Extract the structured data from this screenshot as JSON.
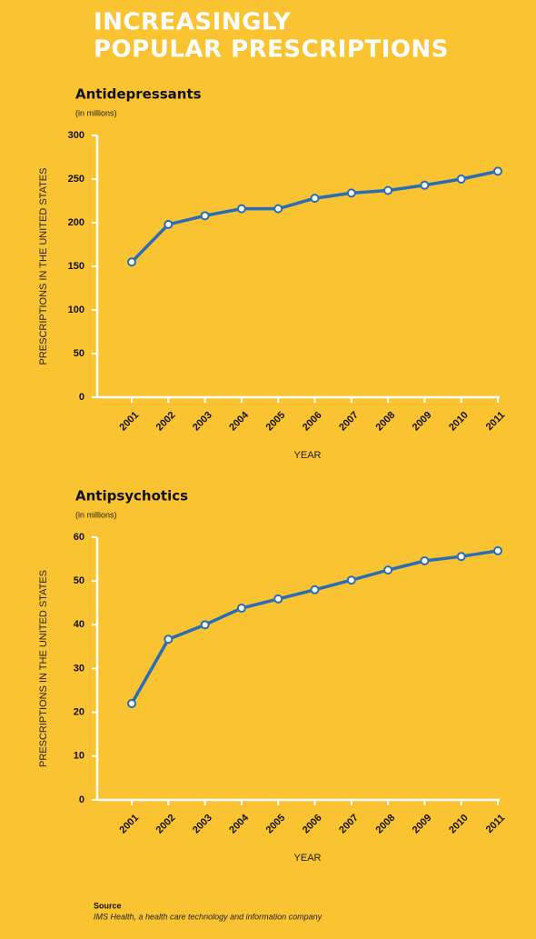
{
  "title": [
    "INCREASINGLY",
    "POPULAR PRESCRIPTIONS"
  ],
  "source": {
    "label": "Source",
    "text": "IMS Health, a health care technology and information company"
  },
  "chart_data": [
    {
      "type": "line",
      "title": "Antidepressants",
      "subtitle": "(in millions)",
      "y_label": "PRESCRIPTIONS IN THE UNITED STATES",
      "x_label": "YEAR",
      "categories": [
        "2001",
        "2002",
        "2003",
        "2004",
        "2005",
        "2006",
        "2007",
        "2008",
        "2009",
        "2010",
        "2011"
      ],
      "values": [
        155,
        198,
        208,
        216,
        216,
        228,
        234,
        237,
        243,
        250,
        259
      ],
      "color": "#2a6db5",
      "ylim": [
        0,
        300
      ],
      "yticks": [
        0,
        50,
        100,
        150,
        200,
        250,
        300
      ]
    },
    {
      "type": "line",
      "title": "Antipsychotics",
      "subtitle": "(in millions)",
      "y_label": "PRESCRIPTIONS IN THE UNITED STATES",
      "x_label": "YEAR",
      "categories": [
        "2001",
        "2002",
        "2003",
        "2004",
        "2005",
        "2006",
        "2007",
        "2008",
        "2009",
        "2010",
        "2011"
      ],
      "values": [
        22,
        36.7,
        40,
        43.8,
        45.9,
        48,
        50.2,
        52.5,
        54.6,
        55.6,
        56.9
      ],
      "color": "#2a6db5",
      "ylim": [
        0,
        60
      ],
      "yticks": [
        0,
        10,
        20,
        30,
        40,
        50,
        60
      ]
    }
  ]
}
